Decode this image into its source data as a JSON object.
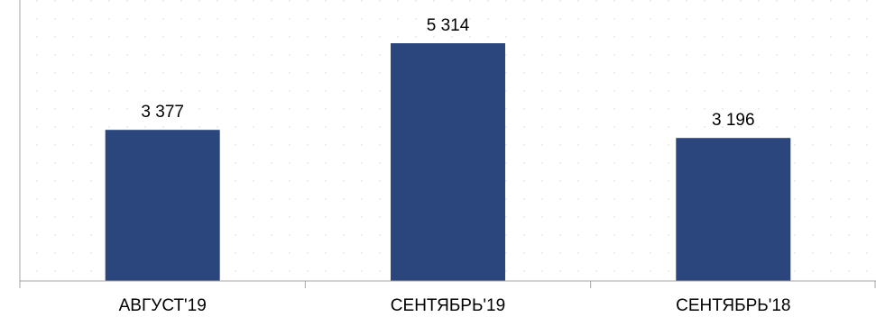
{
  "chart_data": {
    "type": "bar",
    "categories": [
      "АВГУСТ'19",
      "СЕНТЯБРЬ'19",
      "СЕНТЯБРЬ'18"
    ],
    "values": [
      3377,
      5314,
      3196
    ],
    "value_labels": [
      "3 377",
      "5 314",
      "3 196"
    ],
    "title": "",
    "xlabel": "",
    "ylabel": "",
    "ylim": [
      0,
      5850
    ],
    "grid": true,
    "grid_style": "dotted",
    "legend": "none",
    "bar_color": "#2a467c",
    "axis_color": "#a6a6a6",
    "grid_color": "#e3e3e3",
    "text_color": "#000000"
  }
}
